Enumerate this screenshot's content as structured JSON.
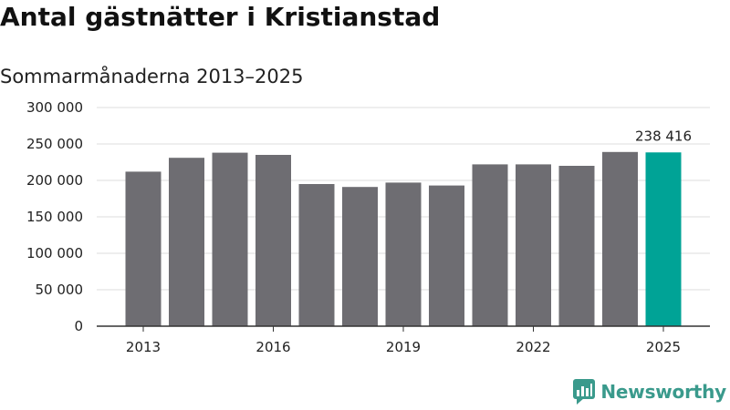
{
  "header": {
    "title": "Antal gästnätter i Kristianstad",
    "subtitle": "Sommarmånaderna 2013–2025"
  },
  "brand": {
    "name": "Newsworthy",
    "logo_icon": "newsworthy-bar-chart-icon",
    "color": "#3a9a8c"
  },
  "colors": {
    "bar": "#6e6d72",
    "highlight": "#00a396",
    "grid": "#dddddd",
    "axis": "#333333"
  },
  "chart_data": {
    "type": "bar",
    "title": "Antal gästnätter i Kristianstad",
    "subtitle": "Sommarmånaderna 2013–2025",
    "xlabel": "",
    "ylabel": "",
    "categories": [
      "2013",
      "2014",
      "2015",
      "2016",
      "2017",
      "2018",
      "2019",
      "2020",
      "2021",
      "2022",
      "2023",
      "2024",
      "2025"
    ],
    "values": [
      212000,
      231000,
      238000,
      235000,
      195000,
      191000,
      197000,
      193000,
      222000,
      222000,
      220000,
      239000,
      238416
    ],
    "highlight_index": 12,
    "ylim": [
      0,
      300000
    ],
    "yticks": [
      0,
      50000,
      100000,
      150000,
      200000,
      250000,
      300000
    ],
    "ytick_labels": [
      "0",
      "50 000",
      "100 000",
      "150 000",
      "200 000",
      "250 000",
      "300 000"
    ],
    "xtick_labels": [
      "2013",
      "2016",
      "2019",
      "2022",
      "2025"
    ],
    "data_labels": [
      {
        "index": 12,
        "text": "238 416"
      }
    ],
    "grid": true,
    "legend": "none"
  }
}
